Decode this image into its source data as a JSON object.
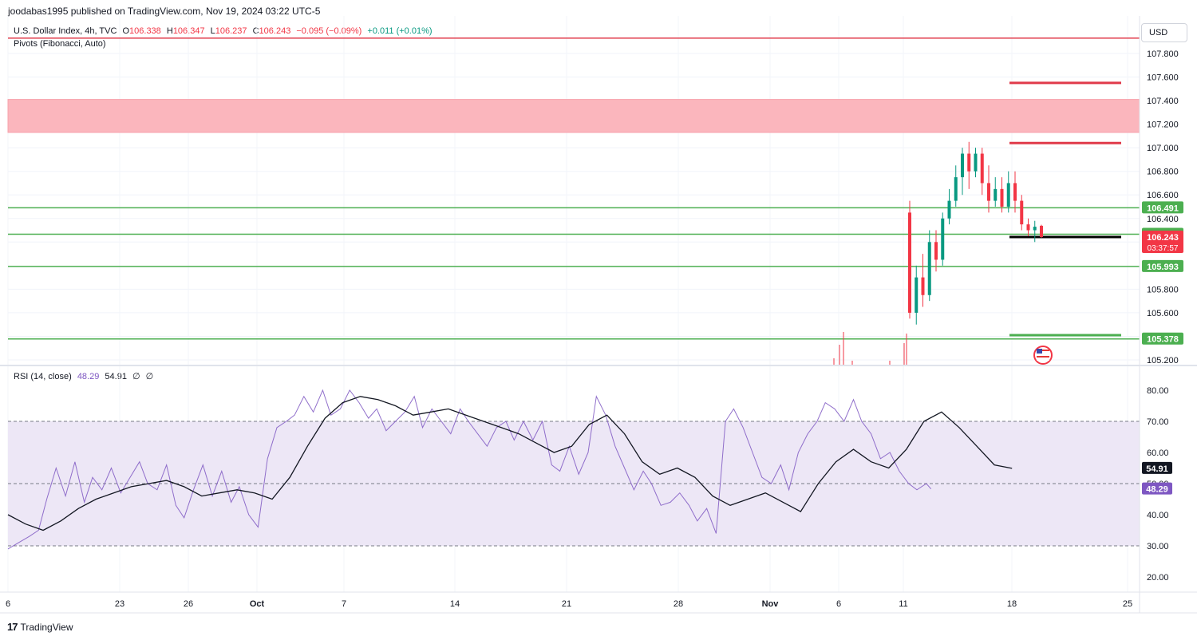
{
  "header": {
    "text": "joodabas1995 published on TradingView.com, Nov 19, 2024 03:22 UTC-5"
  },
  "legend": {
    "symbol": "U.S. Dollar Index, 4h, TVC",
    "open_label": "O",
    "open": "106.338",
    "high_label": "H",
    "high": "106.347",
    "low_label": "L",
    "low": "106.237",
    "close_label": "C",
    "close": "106.243",
    "change": "−0.095 (−0.09%)",
    "extra_change": "+0.011 (+0.01%)",
    "indicator": "Pivots (Fibonacci, Auto)",
    "rsi_name": "RSI (14, close)",
    "rsi_value": "48.29",
    "rsi_ma": "54.91",
    "rsi_extra1": "∅",
    "rsi_extra2": "∅"
  },
  "currency_button": "USD",
  "brand": {
    "logo": "17",
    "name": "TradingView"
  },
  "colors": {
    "up": "#089981",
    "down": "#f23645",
    "pivot_green": "#4caf50",
    "pivot_red": "#e03a4a",
    "zone": "#fbb6bd",
    "rsi_line": "#7e57c2",
    "rsi_ma": "#131722",
    "rsi_band": "#ede7f6"
  },
  "chart_data": [
    {
      "type": "candlestick",
      "price_axis": {
        "min": 105.2,
        "max": 107.8,
        "ticks": [
          "107.800",
          "107.600",
          "107.400",
          "107.200",
          "107.000",
          "106.800",
          "106.600",
          "106.400",
          "106.200",
          "105.800",
          "105.600",
          "105.400",
          "105.200"
        ]
      },
      "x_ticks": [
        "6",
        "23",
        "26",
        "Oct",
        "7",
        "14",
        "21",
        "28",
        "Nov",
        "6",
        "11",
        "18",
        "25"
      ],
      "price_labels": [
        {
          "text": "106.491",
          "value": 106.491,
          "color": "#4caf50"
        },
        {
          "text": "106.266",
          "value": 106.266,
          "color": "#4caf50"
        },
        {
          "text": "106.243",
          "value": 106.243,
          "color": "#f23645",
          "sub": "03:37:57"
        },
        {
          "text": "105.993",
          "value": 105.993,
          "color": "#4caf50"
        },
        {
          "text": "105.378",
          "value": 105.378,
          "color": "#4caf50"
        }
      ],
      "horizontal_lines": [
        {
          "value": 107.93,
          "color": "#e03a4a",
          "full": true
        },
        {
          "value": 106.491,
          "color": "#4caf50",
          "full": true
        },
        {
          "value": 106.266,
          "color": "#4caf50",
          "full": true
        },
        {
          "value": 105.993,
          "color": "#4caf50",
          "full": true
        },
        {
          "value": 105.378,
          "color": "#4caf50",
          "full": true
        }
      ],
      "pivot_segments": [
        {
          "value": 107.55,
          "color": "#e03a4a",
          "from": "Nov 18",
          "to": "Nov 22"
        },
        {
          "value": 107.04,
          "color": "#e03a4a",
          "from": "Nov 18",
          "to": "Nov 22"
        },
        {
          "value": 106.243,
          "color": "#000000",
          "from": "Nov 18",
          "to": "Nov 22"
        },
        {
          "value": 105.41,
          "color": "#4caf50",
          "from": "Nov 18",
          "to": "Nov 22"
        }
      ],
      "zone": {
        "low": 107.13,
        "high": 107.41,
        "color": "#fbb6bd"
      },
      "candles": [
        [
          106.45,
          105.6,
          106.55,
          105.55
        ],
        [
          105.6,
          105.9,
          106.0,
          105.5
        ],
        [
          105.9,
          105.75,
          106.1,
          105.65
        ],
        [
          105.75,
          106.2,
          106.3,
          105.7
        ],
        [
          106.2,
          106.05,
          106.3,
          105.95
        ],
        [
          106.05,
          106.4,
          106.45,
          106.0
        ],
        [
          106.4,
          106.55,
          106.65,
          106.35
        ],
        [
          106.55,
          106.75,
          106.85,
          106.5
        ],
        [
          106.75,
          106.95,
          107.0,
          106.6
        ],
        [
          106.95,
          106.8,
          107.05,
          106.65
        ],
        [
          106.8,
          106.95,
          107.0,
          106.75
        ],
        [
          106.95,
          106.7,
          107.0,
          106.6
        ],
        [
          106.7,
          106.55,
          106.85,
          106.45
        ],
        [
          106.55,
          106.65,
          106.75,
          106.5
        ],
        [
          106.65,
          106.5,
          106.75,
          106.45
        ],
        [
          106.5,
          106.7,
          106.8,
          106.45
        ],
        [
          106.7,
          106.55,
          106.8,
          106.45
        ],
        [
          106.55,
          106.35,
          106.6,
          106.3
        ],
        [
          106.35,
          106.3,
          106.4,
          106.25
        ],
        [
          106.3,
          106.33,
          106.38,
          106.2
        ],
        [
          106.338,
          106.243,
          106.347,
          106.237
        ]
      ]
    },
    {
      "type": "line",
      "title": "RSI (14, close)",
      "y_axis": {
        "min": 20,
        "max": 80,
        "ticks": [
          "80.00",
          "70.00",
          "60.00",
          "50.00",
          "40.00",
          "30.00",
          "20.00"
        ]
      },
      "bands": {
        "upper": 70,
        "middle": 50,
        "lower": 30
      },
      "value_labels": [
        {
          "text": "54.91",
          "value": 54.91,
          "color": "#131722"
        },
        {
          "text": "48.29",
          "value": 48.29,
          "color": "#7e57c2"
        }
      ],
      "series": [
        {
          "color": "#7e57c2",
          "points": [
            [
              0.0,
              29
            ],
            [
              0.9,
              31
            ],
            [
              1.8,
              33
            ],
            [
              2.6,
              35
            ],
            [
              3.3,
              45
            ],
            [
              4.1,
              55
            ],
            [
              4.9,
              46
            ],
            [
              5.7,
              57
            ],
            [
              6.5,
              44
            ],
            [
              7.2,
              52
            ],
            [
              8.0,
              48
            ],
            [
              8.8,
              55
            ],
            [
              9.6,
              47
            ],
            [
              10.4,
              52
            ],
            [
              11.2,
              57
            ],
            [
              11.9,
              50
            ],
            [
              12.7,
              48
            ],
            [
              13.5,
              56
            ],
            [
              14.3,
              43
            ],
            [
              15.0,
              39
            ],
            [
              15.8,
              48
            ],
            [
              16.6,
              56
            ],
            [
              17.4,
              46
            ],
            [
              18.2,
              54
            ],
            [
              19.0,
              44
            ],
            [
              19.7,
              49
            ],
            [
              20.5,
              40
            ],
            [
              21.3,
              36
            ],
            [
              22.1,
              58
            ],
            [
              22.9,
              68
            ],
            [
              23.7,
              70
            ],
            [
              24.4,
              72
            ],
            [
              25.2,
              78
            ],
            [
              26.0,
              73
            ],
            [
              26.8,
              80
            ],
            [
              27.5,
              72
            ],
            [
              28.3,
              74
            ],
            [
              29.1,
              80
            ],
            [
              29.9,
              76
            ],
            [
              30.7,
              71
            ],
            [
              31.4,
              74
            ],
            [
              32.2,
              67
            ],
            [
              33.0,
              70
            ],
            [
              33.8,
              73
            ],
            [
              34.6,
              78
            ],
            [
              35.3,
              68
            ],
            [
              36.1,
              74
            ],
            [
              36.9,
              70
            ],
            [
              37.7,
              66
            ],
            [
              38.5,
              74
            ],
            [
              39.2,
              70
            ],
            [
              40.0,
              66
            ],
            [
              40.8,
              62
            ],
            [
              41.6,
              68
            ],
            [
              42.4,
              70
            ],
            [
              43.1,
              64
            ],
            [
              43.9,
              70
            ],
            [
              44.7,
              64
            ],
            [
              45.5,
              70
            ],
            [
              46.3,
              56
            ],
            [
              47.0,
              54
            ],
            [
              47.8,
              62
            ],
            [
              48.6,
              53
            ],
            [
              49.4,
              60
            ],
            [
              50.1,
              78
            ],
            [
              50.9,
              72
            ],
            [
              51.7,
              62
            ],
            [
              52.5,
              55
            ],
            [
              53.3,
              48
            ],
            [
              54.1,
              54
            ],
            [
              54.8,
              50
            ],
            [
              55.6,
              43
            ],
            [
              56.4,
              44
            ],
            [
              57.2,
              47
            ],
            [
              58.0,
              43
            ],
            [
              58.7,
              38
            ],
            [
              59.5,
              42
            ],
            [
              60.3,
              34
            ],
            [
              61.1,
              70
            ],
            [
              61.8,
              74
            ],
            [
              62.6,
              68
            ],
            [
              63.4,
              60
            ],
            [
              64.2,
              52
            ],
            [
              65.0,
              50
            ],
            [
              65.8,
              56
            ],
            [
              66.5,
              48
            ],
            [
              67.3,
              60
            ],
            [
              68.1,
              66
            ],
            [
              68.9,
              70
            ],
            [
              69.6,
              76
            ],
            [
              70.4,
              74
            ],
            [
              71.2,
              70
            ],
            [
              72.0,
              77
            ],
            [
              72.7,
              70
            ],
            [
              73.5,
              66
            ],
            [
              74.3,
              58
            ],
            [
              75.1,
              60
            ],
            [
              75.9,
              54
            ],
            [
              76.7,
              50
            ],
            [
              77.4,
              48
            ],
            [
              78.2,
              50
            ],
            [
              78.6,
              48.29
            ]
          ]
        },
        {
          "color": "#131722",
          "points": [
            [
              0.0,
              40
            ],
            [
              1.5,
              37
            ],
            [
              3.0,
              35
            ],
            [
              4.5,
              38
            ],
            [
              6.0,
              42
            ],
            [
              7.5,
              45
            ],
            [
              9.0,
              47
            ],
            [
              10.5,
              49
            ],
            [
              12.0,
              50
            ],
            [
              13.5,
              51
            ],
            [
              15.0,
              49
            ],
            [
              16.5,
              46
            ],
            [
              18.0,
              47
            ],
            [
              19.5,
              48
            ],
            [
              21.0,
              47
            ],
            [
              22.5,
              45
            ],
            [
              24.0,
              52
            ],
            [
              25.5,
              62
            ],
            [
              27.0,
              71
            ],
            [
              28.5,
              76
            ],
            [
              30.0,
              78
            ],
            [
              31.5,
              77
            ],
            [
              33.0,
              75
            ],
            [
              34.5,
              72
            ],
            [
              36.0,
              73
            ],
            [
              37.5,
              74
            ],
            [
              39.0,
              72
            ],
            [
              40.5,
              70
            ],
            [
              42.0,
              68
            ],
            [
              43.5,
              66
            ],
            [
              45.0,
              63
            ],
            [
              46.5,
              60
            ],
            [
              48.0,
              62
            ],
            [
              49.5,
              69
            ],
            [
              51.0,
              72
            ],
            [
              52.5,
              66
            ],
            [
              54.0,
              57
            ],
            [
              55.5,
              53
            ],
            [
              57.0,
              55
            ],
            [
              58.5,
              52
            ],
            [
              60.0,
              46
            ],
            [
              61.5,
              43
            ],
            [
              63.0,
              45
            ],
            [
              64.5,
              47
            ],
            [
              66.0,
              44
            ],
            [
              67.5,
              41
            ],
            [
              69.0,
              50
            ],
            [
              70.5,
              57
            ],
            [
              72.0,
              61
            ],
            [
              73.5,
              57
            ],
            [
              75.0,
              55
            ],
            [
              76.5,
              61
            ],
            [
              78.0,
              70
            ],
            [
              79.5,
              73
            ],
            [
              81.0,
              68
            ],
            [
              82.5,
              62
            ],
            [
              84.0,
              56
            ],
            [
              85.5,
              54.91
            ]
          ]
        }
      ]
    }
  ]
}
